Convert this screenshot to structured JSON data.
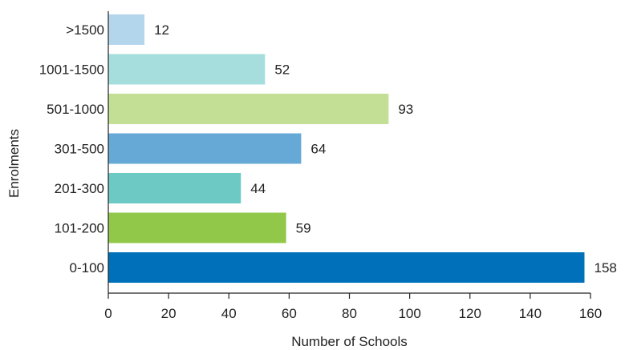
{
  "chart_data": {
    "type": "bar",
    "orientation": "horizontal",
    "title": "",
    "xlabel": "Number of Schools",
    "ylabel": "Enrolments",
    "xlim": [
      0,
      160
    ],
    "x_ticks": [
      0,
      20,
      40,
      60,
      80,
      100,
      120,
      140,
      160
    ],
    "grid": false,
    "legend": "none",
    "categories": [
      ">1500",
      "1001-1500",
      "501-1000",
      "301-500",
      "201-300",
      "101-200",
      "0-100"
    ],
    "values": [
      12,
      52,
      93,
      64,
      44,
      59,
      158
    ],
    "colors": [
      "#b3d6ec",
      "#a6dedd",
      "#c2df95",
      "#66a9d6",
      "#6dc9c3",
      "#92c84a",
      "#0070bb"
    ]
  }
}
